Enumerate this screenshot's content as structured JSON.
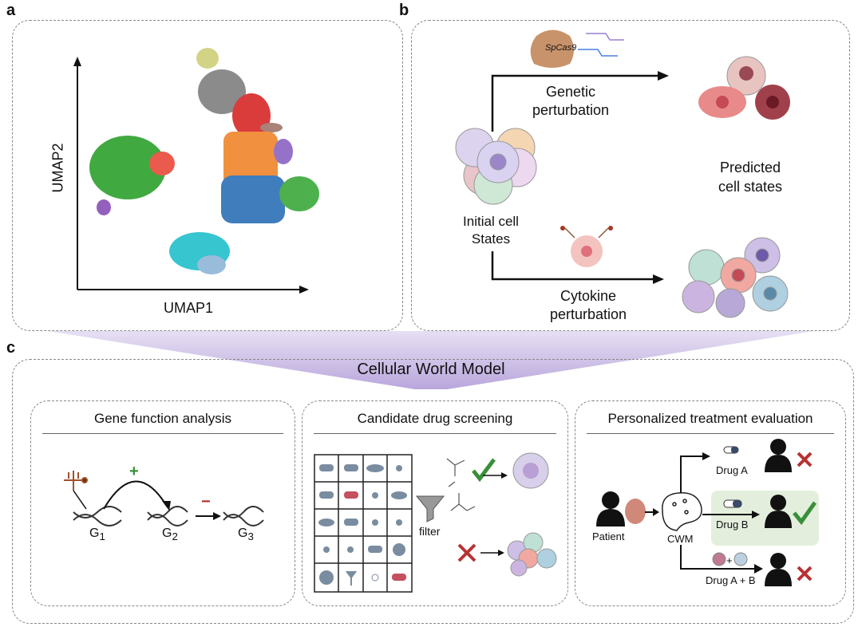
{
  "panel_labels": {
    "a": "a",
    "b": "b",
    "c": "c"
  },
  "panel_a": {
    "x_axis_label": "UMAP1",
    "y_axis_label": "UMAP2"
  },
  "panel_b": {
    "protein_label": "SpCas9",
    "genetic_label_1": "Genetic",
    "genetic_label_2": "perturbation",
    "initial_label_1": "Initial cell",
    "initial_label_2": "States",
    "predicted_label_1": "Predicted",
    "predicted_label_2": "cell states",
    "cytokine_label_1": "Cytokine",
    "cytokine_label_2": "perturbation"
  },
  "panel_c": {
    "title": "Cellular World Model",
    "gene_function": {
      "title": "Gene function analysis",
      "g1": "G",
      "g1_sub": "1",
      "g2": "G",
      "g2_sub": "2",
      "g3": "G",
      "g3_sub": "3",
      "plus": "+",
      "minus": "−"
    },
    "drug_screening": {
      "title": "Candidate drug screening",
      "filter_label": "filter"
    },
    "treatment": {
      "title": "Personalized treatment evaluation",
      "patient_label": "Patient",
      "cwm_label": "CWM",
      "drug_a": "Drug A",
      "drug_b": "Drug B",
      "drug_ab": "Drug A + B",
      "plus": "+"
    }
  },
  "colors": {
    "green_check": "#3a8f3a",
    "red_cross": "#b83232",
    "purple_funnel": "#b9a6dc",
    "highlight": "#e3efdc"
  }
}
